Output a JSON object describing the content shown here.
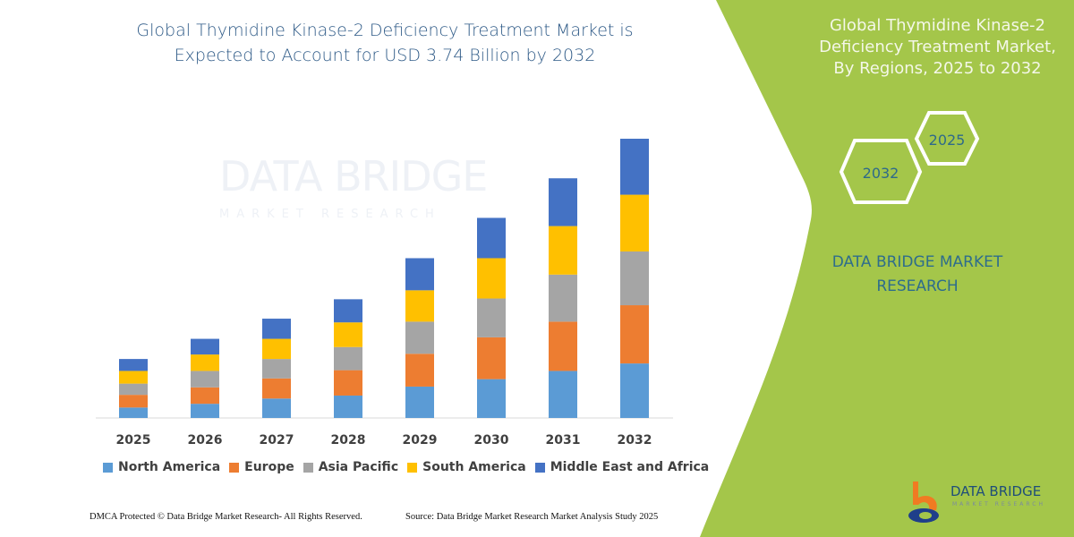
{
  "header": {
    "title_line1": "Global Thymidine Kinase-2 Deficiency Treatment Market is",
    "title_line2": "Expected to Account for USD 3.74 Billion by 2032"
  },
  "side_panel": {
    "title": "Global Thymidine Kinase-2 Deficiency Treatment Market, By Regions, 2025 to 2032",
    "hex_start": "2025",
    "hex_end": "2032",
    "brand": "DATA BRIDGE MARKET RESEARCH",
    "logo_text": "DATA BRIDGE",
    "logo_sub": "MARKET RESEARCH",
    "bg_color": "#a4c64a"
  },
  "watermark": {
    "line1": "DATA BRIDGE",
    "line2": "MARKET RESEARCH"
  },
  "footer": {
    "left": "DMCA Protected © Data Bridge Market Research- All Rights Reserved.",
    "right": "Source: Data Bridge Market Research Market Analysis Study 2025"
  },
  "chart_data": {
    "type": "bar",
    "stacked": true,
    "title": "Global Thymidine Kinase-2 Deficiency Treatment Market is Expected to Account for USD 3.74 Billion by 2032",
    "xlabel": "",
    "ylabel": "",
    "ylim": [
      0,
      3.74
    ],
    "grid": false,
    "legend_position": "bottom",
    "categories": [
      "2025",
      "2026",
      "2027",
      "2028",
      "2029",
      "2030",
      "2031",
      "2032"
    ],
    "series": [
      {
        "name": "North America",
        "color": "#5b9bd5",
        "values": [
          0.14,
          0.19,
          0.26,
          0.3,
          0.42,
          0.52,
          0.63,
          0.73
        ]
      },
      {
        "name": "Europe",
        "color": "#ed7d31",
        "values": [
          0.17,
          0.22,
          0.27,
          0.34,
          0.44,
          0.56,
          0.66,
          0.78
        ]
      },
      {
        "name": "Asia Pacific",
        "color": "#a5a5a5",
        "values": [
          0.15,
          0.22,
          0.26,
          0.31,
          0.43,
          0.52,
          0.63,
          0.72
        ]
      },
      {
        "name": "South America",
        "color": "#ffc000",
        "values": [
          0.17,
          0.22,
          0.27,
          0.33,
          0.42,
          0.54,
          0.65,
          0.76
        ]
      },
      {
        "name": "Middle East and Africa",
        "color": "#4472c4",
        "values": [
          0.16,
          0.21,
          0.27,
          0.31,
          0.43,
          0.54,
          0.64,
          0.75
        ]
      }
    ]
  }
}
